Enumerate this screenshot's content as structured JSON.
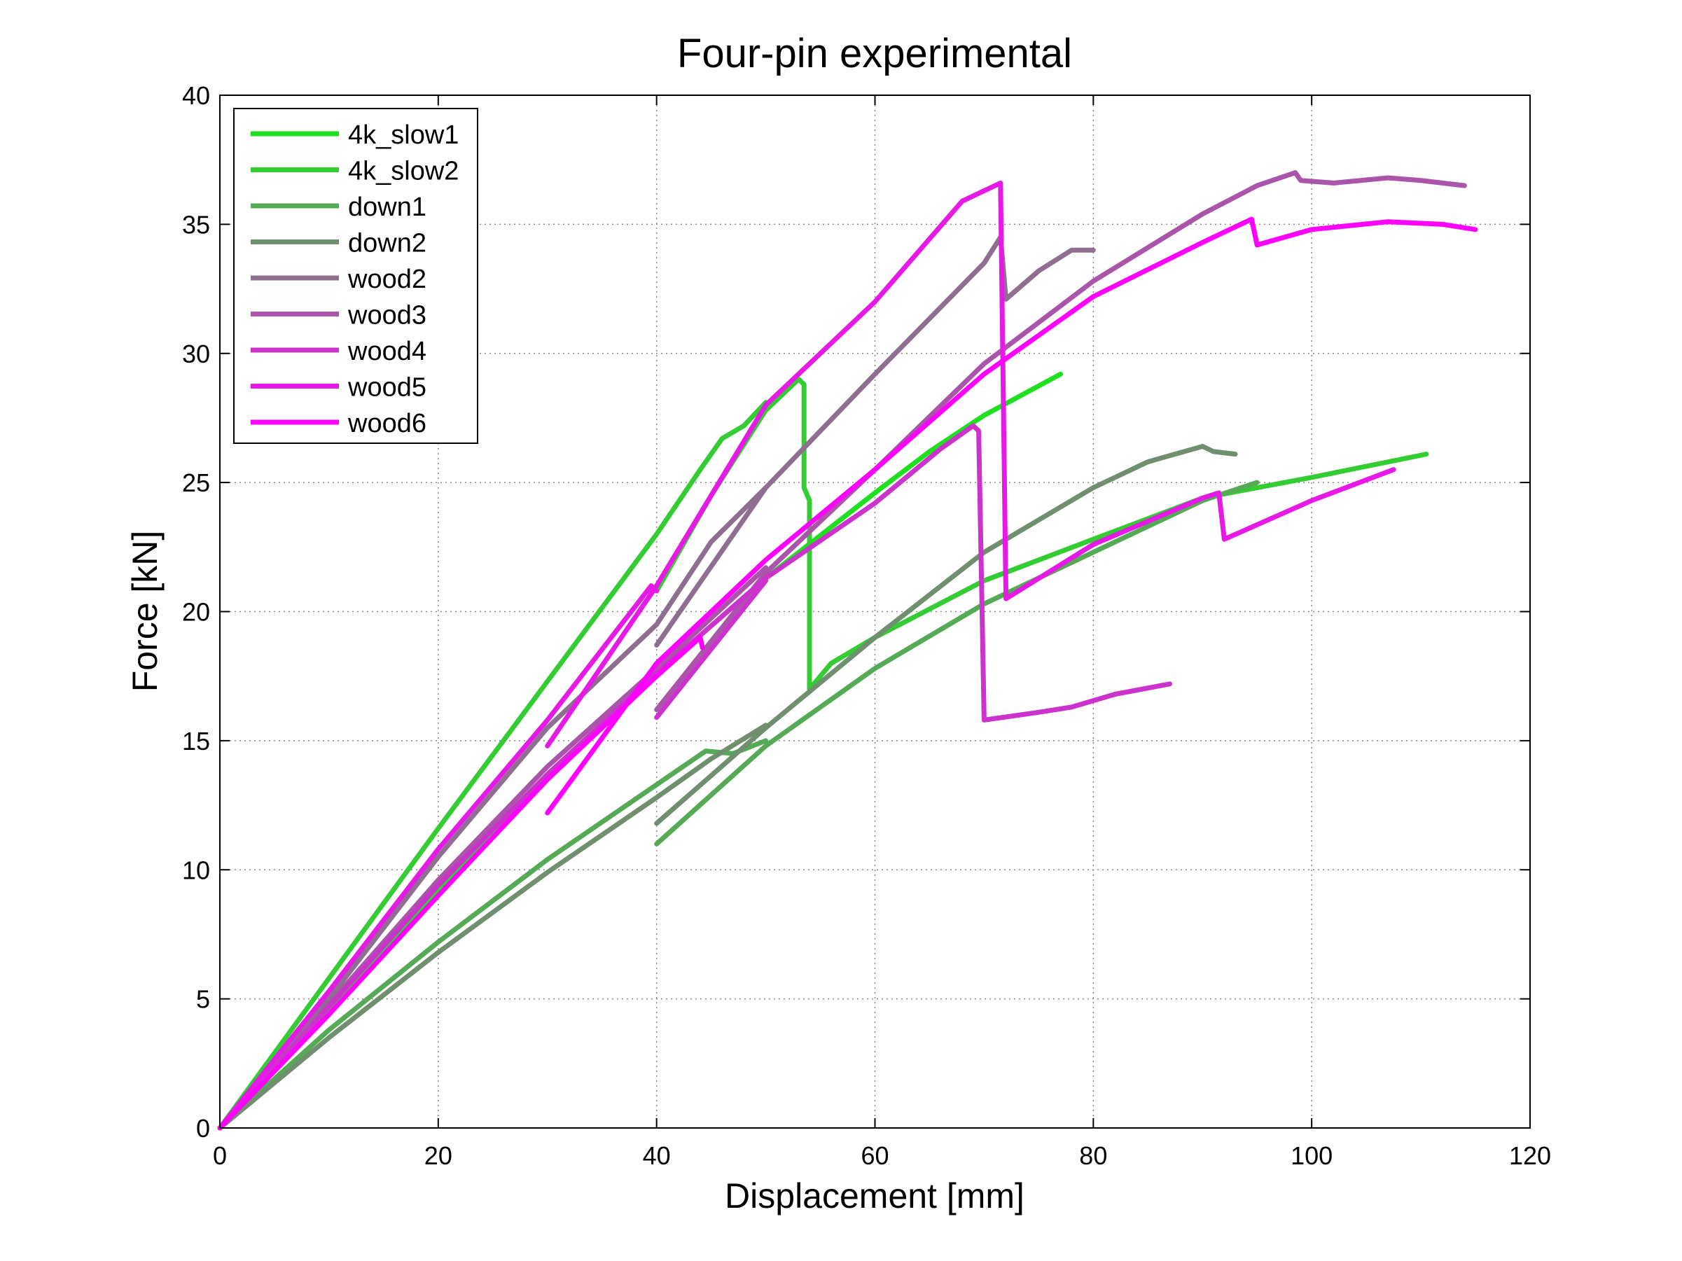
{
  "chart_data": {
    "type": "line",
    "title": "Four-pin experimental",
    "xlabel": "Displacement [mm]",
    "ylabel": "Force [kN]",
    "xlim": [
      0,
      120
    ],
    "ylim": [
      0,
      40
    ],
    "xticks": [
      0,
      20,
      40,
      60,
      80,
      100,
      120
    ],
    "yticks": [
      0,
      5,
      10,
      15,
      20,
      25,
      30,
      35,
      40
    ],
    "grid": true,
    "legend_position": "top-left",
    "series": [
      {
        "name": "4k_slow1",
        "color": "#1ee01e",
        "points": [
          [
            0,
            0
          ],
          [
            10,
            4.6
          ],
          [
            20,
            9.2
          ],
          [
            30,
            13.5
          ],
          [
            40,
            17.6
          ],
          [
            50,
            21.3
          ],
          [
            60,
            24.6
          ],
          [
            65,
            26.2
          ],
          [
            70,
            27.6
          ],
          [
            77,
            29.2
          ]
        ]
      },
      {
        "name": "4k_slow2",
        "color": "#33cc33",
        "points": [
          [
            0,
            0
          ],
          [
            10,
            5.8
          ],
          [
            20,
            11.6
          ],
          [
            30,
            17.3
          ],
          [
            40,
            23
          ],
          [
            44,
            25.5
          ],
          [
            46,
            26.7
          ],
          [
            48,
            27.2
          ],
          [
            50,
            28.1
          ],
          null,
          [
            40,
            20.8
          ],
          [
            45,
            24.5
          ],
          [
            50,
            27.8
          ],
          [
            53,
            29
          ],
          [
            53.5,
            28.8
          ],
          [
            53.5,
            24.8
          ],
          [
            54,
            24.3
          ],
          [
            54,
            17
          ],
          [
            56,
            18
          ],
          [
            60,
            19
          ],
          [
            70,
            21.2
          ],
          [
            80,
            22.8
          ],
          [
            90,
            24.4
          ],
          [
            100,
            25.2
          ],
          [
            110.5,
            26.1
          ]
        ]
      },
      {
        "name": "down1",
        "color": "#55aa55",
        "points": [
          [
            0,
            0
          ],
          [
            10,
            3.8
          ],
          [
            20,
            7.2
          ],
          [
            30,
            10.4
          ],
          [
            40,
            13.3
          ],
          [
            44.5,
            14.6
          ],
          [
            47,
            14.5
          ],
          [
            50,
            15
          ],
          null,
          [
            40,
            11
          ],
          [
            50,
            14.8
          ],
          [
            60,
            17.8
          ],
          [
            70,
            20.3
          ],
          [
            80,
            22.3
          ],
          [
            90,
            24.3
          ],
          [
            95,
            25
          ]
        ]
      },
      {
        "name": "down2",
        "color": "#6f8f6f",
        "points": [
          [
            0,
            0
          ],
          [
            10,
            3.5
          ],
          [
            20,
            6.8
          ],
          [
            30,
            9.9
          ],
          [
            40,
            12.8
          ],
          [
            45,
            14.3
          ],
          [
            50,
            15.6
          ],
          null,
          [
            40,
            11.8
          ],
          [
            50,
            15.5
          ],
          [
            60,
            19
          ],
          [
            70,
            22.3
          ],
          [
            80,
            24.8
          ],
          [
            85,
            25.8
          ],
          [
            90,
            26.4
          ],
          [
            91,
            26.2
          ],
          [
            93,
            26.1
          ]
        ]
      },
      {
        "name": "wood2",
        "color": "#8f6f8f",
        "points": [
          [
            0,
            0
          ],
          [
            10,
            5
          ],
          [
            20,
            10.5
          ],
          [
            30,
            15.5
          ],
          [
            40,
            19.5
          ],
          [
            45,
            22.7
          ],
          [
            50,
            24.8
          ],
          null,
          [
            40,
            18.7
          ],
          [
            50,
            24.8
          ],
          [
            60,
            29.2
          ],
          [
            70,
            33.5
          ],
          [
            71.5,
            34.5
          ],
          [
            72,
            32.1
          ],
          [
            75,
            33.2
          ],
          [
            78,
            34
          ],
          [
            80,
            34
          ]
        ]
      },
      {
        "name": "wood3",
        "color": "#aa55aa",
        "points": [
          [
            0,
            0
          ],
          [
            10,
            4.8
          ],
          [
            20,
            9.6
          ],
          [
            30,
            14
          ],
          [
            40,
            17.8
          ],
          [
            50,
            21.7
          ],
          null,
          [
            40,
            16.2
          ],
          [
            50,
            21.5
          ],
          [
            60,
            25.5
          ],
          [
            70,
            29.6
          ],
          [
            80,
            32.8
          ],
          [
            90,
            35.4
          ],
          [
            95,
            36.5
          ],
          [
            98.5,
            37
          ],
          [
            99,
            36.7
          ],
          [
            102,
            36.6
          ],
          [
            107,
            36.8
          ],
          [
            110,
            36.7
          ],
          [
            114,
            36.5
          ]
        ]
      },
      {
        "name": "wood4",
        "color": "#cc33cc",
        "points": [
          [
            0,
            0
          ],
          [
            10,
            4.7
          ],
          [
            20,
            9.4
          ],
          [
            30,
            13.7
          ],
          [
            40,
            17.6
          ],
          [
            50,
            21.3
          ],
          [
            60,
            24.2
          ],
          [
            66,
            26.3
          ],
          [
            69,
            27.2
          ],
          [
            69.5,
            27
          ],
          [
            70,
            15.8
          ],
          [
            75,
            16.1
          ],
          [
            78,
            16.3
          ],
          [
            82,
            16.8
          ],
          [
            87,
            17.2
          ],
          null,
          [
            40,
            15.9
          ],
          [
            50,
            21.2
          ]
        ]
      },
      {
        "name": "wood5",
        "color": "#e619e6",
        "points": [
          [
            0,
            0
          ],
          [
            10,
            5.3
          ],
          [
            20,
            10.8
          ],
          [
            30,
            15.8
          ],
          [
            39.5,
            21
          ],
          [
            40,
            20.8
          ],
          null,
          [
            30,
            14.8
          ],
          [
            40,
            21
          ],
          [
            50,
            28
          ],
          [
            60,
            32
          ],
          [
            68,
            35.9
          ],
          [
            71.5,
            36.6
          ],
          [
            72,
            20.5
          ],
          [
            80,
            22.6
          ],
          [
            90,
            24.4
          ],
          [
            91.5,
            24.6
          ],
          [
            92,
            22.8
          ],
          [
            100,
            24.3
          ],
          [
            107.5,
            25.5
          ]
        ]
      },
      {
        "name": "wood6",
        "color": "#ff00ff",
        "points": [
          [
            0,
            0
          ],
          [
            10,
            4.4
          ],
          [
            20,
            9
          ],
          [
            30,
            13.5
          ],
          [
            40,
            17.5
          ],
          [
            44,
            19
          ],
          [
            44.2,
            18.6
          ],
          null,
          [
            30,
            12.2
          ],
          [
            40,
            18
          ],
          [
            50,
            22
          ],
          [
            60,
            25.5
          ],
          [
            70,
            29.2
          ],
          [
            80,
            32.2
          ],
          [
            90,
            34.3
          ],
          [
            94.5,
            35.2
          ],
          [
            95,
            34.2
          ],
          [
            100,
            34.8
          ],
          [
            107,
            35.1
          ],
          [
            112,
            35
          ],
          [
            115,
            34.8
          ]
        ]
      }
    ]
  }
}
